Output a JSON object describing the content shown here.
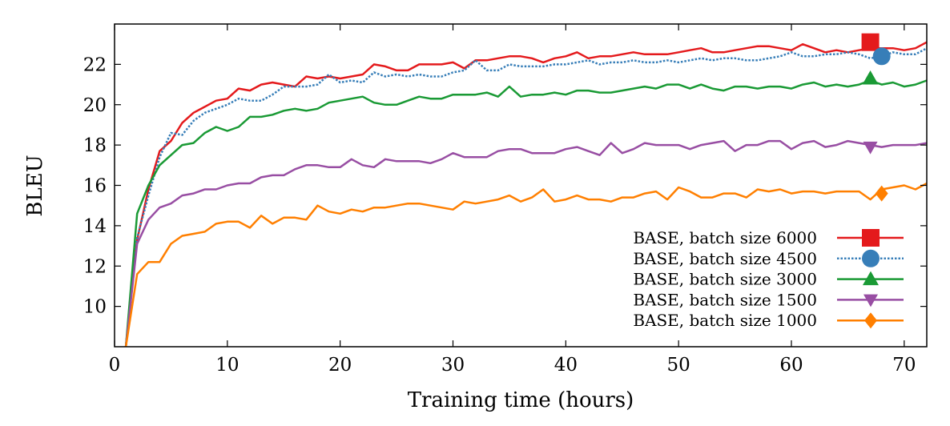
{
  "chart_data": {
    "type": "line",
    "title": "",
    "xlabel": "Training time (hours)",
    "ylabel": "BLEU",
    "xlim": [
      0,
      72
    ],
    "ylim": [
      8,
      24
    ],
    "xticks": [
      0,
      10,
      20,
      30,
      40,
      50,
      60,
      70
    ],
    "yticks": [
      10,
      12,
      14,
      16,
      18,
      20,
      22
    ],
    "grid": false,
    "legend_position": "bottom-right",
    "series": [
      {
        "name": "BASE, batch size 6000",
        "color": "#e41a1c",
        "line_style": "solid",
        "marker": "square",
        "marker_point": [
          67,
          23.1
        ],
        "x": [
          1,
          2,
          3,
          4,
          5,
          6,
          7,
          8,
          9,
          10,
          11,
          12,
          13,
          14,
          15,
          16,
          17,
          18,
          19,
          20,
          21,
          22,
          23,
          24,
          25,
          26,
          27,
          28,
          29,
          30,
          31,
          32,
          33,
          34,
          35,
          36,
          37,
          38,
          39,
          40,
          41,
          42,
          43,
          44,
          45,
          46,
          47,
          48,
          49,
          50,
          51,
          52,
          53,
          54,
          55,
          56,
          57,
          58,
          59,
          60,
          61,
          62,
          63,
          64,
          65,
          66,
          67,
          68,
          69,
          70,
          71,
          72
        ],
        "y": [
          8,
          13.3,
          15.8,
          17.7,
          18.2,
          19.1,
          19.6,
          19.9,
          20.2,
          20.3,
          20.8,
          20.7,
          21.0,
          21.1,
          21.0,
          20.9,
          21.4,
          21.3,
          21.4,
          21.3,
          21.4,
          21.5,
          22.0,
          21.9,
          21.7,
          21.7,
          22.0,
          22.0,
          22.0,
          22.1,
          21.8,
          22.2,
          22.2,
          22.3,
          22.4,
          22.4,
          22.3,
          22.1,
          22.3,
          22.4,
          22.6,
          22.3,
          22.4,
          22.4,
          22.5,
          22.6,
          22.5,
          22.5,
          22.5,
          22.6,
          22.7,
          22.8,
          22.6,
          22.6,
          22.7,
          22.8,
          22.9,
          22.9,
          22.8,
          22.7,
          23.0,
          22.8,
          22.6,
          22.7,
          22.6,
          22.7,
          22.8,
          22.8,
          22.8,
          22.7,
          22.8,
          23.1
        ]
      },
      {
        "name": "BASE, batch size 4500",
        "color": "#377eb8",
        "line_style": "dotted",
        "marker": "circle",
        "marker_point": [
          68,
          22.4
        ],
        "x": [
          1,
          2,
          3,
          4,
          5,
          6,
          7,
          8,
          9,
          10,
          11,
          12,
          13,
          14,
          15,
          16,
          17,
          18,
          19,
          20,
          21,
          22,
          23,
          24,
          25,
          26,
          27,
          28,
          29,
          30,
          31,
          32,
          33,
          34,
          35,
          36,
          37,
          38,
          39,
          40,
          41,
          42,
          43,
          44,
          45,
          46,
          47,
          48,
          49,
          50,
          51,
          52,
          53,
          54,
          55,
          56,
          57,
          58,
          59,
          60,
          61,
          62,
          63,
          64,
          65,
          66,
          67,
          68,
          69,
          70,
          71,
          72
        ],
        "y": [
          8,
          13.4,
          15.5,
          17.4,
          18.6,
          18.5,
          19.2,
          19.6,
          19.8,
          20.0,
          20.3,
          20.2,
          20.2,
          20.5,
          20.9,
          20.9,
          20.9,
          21.0,
          21.5,
          21.1,
          21.2,
          21.1,
          21.6,
          21.4,
          21.5,
          21.4,
          21.5,
          21.4,
          21.4,
          21.6,
          21.7,
          22.2,
          21.7,
          21.7,
          22.0,
          21.9,
          21.9,
          21.9,
          22.0,
          22.0,
          22.1,
          22.2,
          22.0,
          22.1,
          22.1,
          22.2,
          22.1,
          22.1,
          22.2,
          22.1,
          22.2,
          22.3,
          22.2,
          22.3,
          22.3,
          22.2,
          22.2,
          22.3,
          22.4,
          22.6,
          22.4,
          22.4,
          22.5,
          22.5,
          22.6,
          22.5,
          22.3,
          22.4,
          22.6,
          22.5,
          22.5,
          22.8
        ]
      },
      {
        "name": "BASE, batch size 3000",
        "color": "#1a9a35",
        "line_style": "solid",
        "marker": "triangle-up",
        "marker_point": [
          67,
          21.3
        ],
        "x": [
          1,
          2,
          3,
          4,
          5,
          6,
          7,
          8,
          9,
          10,
          11,
          12,
          13,
          14,
          15,
          16,
          17,
          18,
          19,
          20,
          21,
          22,
          23,
          24,
          25,
          26,
          27,
          28,
          29,
          30,
          31,
          32,
          33,
          34,
          35,
          36,
          37,
          38,
          39,
          40,
          41,
          42,
          43,
          44,
          45,
          46,
          47,
          48,
          49,
          50,
          51,
          52,
          53,
          54,
          55,
          56,
          57,
          58,
          59,
          60,
          61,
          62,
          63,
          64,
          65,
          66,
          67,
          68,
          69,
          70,
          71,
          72
        ],
        "y": [
          8,
          14.6,
          16.0,
          17.0,
          17.5,
          18.0,
          18.1,
          18.6,
          18.9,
          18.7,
          18.9,
          19.4,
          19.4,
          19.5,
          19.7,
          19.8,
          19.7,
          19.8,
          20.1,
          20.2,
          20.3,
          20.4,
          20.1,
          20.0,
          20.0,
          20.2,
          20.4,
          20.3,
          20.3,
          20.5,
          20.5,
          20.5,
          20.6,
          20.4,
          20.9,
          20.4,
          20.5,
          20.5,
          20.6,
          20.5,
          20.7,
          20.7,
          20.6,
          20.6,
          20.7,
          20.8,
          20.9,
          20.8,
          21.0,
          21.0,
          20.8,
          21.0,
          20.8,
          20.7,
          20.9,
          20.9,
          20.8,
          20.9,
          20.9,
          20.8,
          21.0,
          21.1,
          20.9,
          21.0,
          20.9,
          21.0,
          21.2,
          21.0,
          21.1,
          20.9,
          21.0,
          21.2
        ]
      },
      {
        "name": "BASE, batch size 1500",
        "color": "#984ea3",
        "line_style": "solid",
        "marker": "triangle-down",
        "marker_point": [
          67,
          17.9
        ],
        "x": [
          1,
          2,
          3,
          4,
          5,
          6,
          7,
          8,
          9,
          10,
          11,
          12,
          13,
          14,
          15,
          16,
          17,
          18,
          19,
          20,
          21,
          22,
          23,
          24,
          25,
          26,
          27,
          28,
          29,
          30,
          31,
          32,
          33,
          34,
          35,
          36,
          37,
          38,
          39,
          40,
          41,
          42,
          43,
          44,
          45,
          46,
          47,
          48,
          49,
          50,
          51,
          52,
          53,
          54,
          55,
          56,
          57,
          58,
          59,
          60,
          61,
          62,
          63,
          64,
          65,
          66,
          67,
          68,
          69,
          70,
          71,
          72
        ],
        "y": [
          8,
          13.1,
          14.3,
          14.9,
          15.1,
          15.5,
          15.6,
          15.8,
          15.8,
          16.0,
          16.1,
          16.1,
          16.4,
          16.5,
          16.5,
          16.8,
          17.0,
          17.0,
          16.9,
          16.9,
          17.3,
          17.0,
          16.9,
          17.3,
          17.2,
          17.2,
          17.2,
          17.1,
          17.3,
          17.6,
          17.4,
          17.4,
          17.4,
          17.7,
          17.8,
          17.8,
          17.6,
          17.6,
          17.6,
          17.8,
          17.9,
          17.7,
          17.5,
          18.1,
          17.6,
          17.8,
          18.1,
          18.0,
          18.0,
          18.0,
          17.8,
          18.0,
          18.1,
          18.2,
          17.7,
          18.0,
          18.0,
          18.2,
          18.2,
          17.8,
          18.1,
          18.2,
          17.9,
          18.0,
          18.2,
          18.1,
          18.0,
          17.9,
          18.0,
          18.0,
          18.0,
          18.1
        ]
      },
      {
        "name": "BASE, batch size 1000",
        "color": "#ff7f00",
        "line_style": "solid",
        "marker": "diamond",
        "marker_point": [
          68,
          15.6
        ],
        "x": [
          1,
          2,
          3,
          4,
          5,
          6,
          7,
          8,
          9,
          10,
          11,
          12,
          13,
          14,
          15,
          16,
          17,
          18,
          19,
          20,
          21,
          22,
          23,
          24,
          25,
          26,
          27,
          28,
          29,
          30,
          31,
          32,
          33,
          34,
          35,
          36,
          37,
          38,
          39,
          40,
          41,
          42,
          43,
          44,
          45,
          46,
          47,
          48,
          49,
          50,
          51,
          52,
          53,
          54,
          55,
          56,
          57,
          58,
          59,
          60,
          61,
          62,
          63,
          64,
          65,
          66,
          67,
          68,
          69,
          70,
          71,
          72
        ],
        "y": [
          8,
          11.6,
          12.2,
          12.2,
          13.1,
          13.5,
          13.6,
          13.7,
          14.1,
          14.2,
          14.2,
          13.9,
          14.5,
          14.1,
          14.4,
          14.4,
          14.3,
          15.0,
          14.7,
          14.6,
          14.8,
          14.7,
          14.9,
          14.9,
          15.0,
          15.1,
          15.1,
          15.0,
          14.9,
          14.8,
          15.2,
          15.1,
          15.2,
          15.3,
          15.5,
          15.2,
          15.4,
          15.8,
          15.2,
          15.3,
          15.5,
          15.3,
          15.3,
          15.2,
          15.4,
          15.4,
          15.6,
          15.7,
          15.3,
          15.9,
          15.7,
          15.4,
          15.4,
          15.6,
          15.6,
          15.4,
          15.8,
          15.7,
          15.8,
          15.6,
          15.7,
          15.7,
          15.6,
          15.7,
          15.7,
          15.7,
          15.3,
          15.8,
          15.9,
          16.0,
          15.8,
          16.1
        ]
      }
    ]
  }
}
